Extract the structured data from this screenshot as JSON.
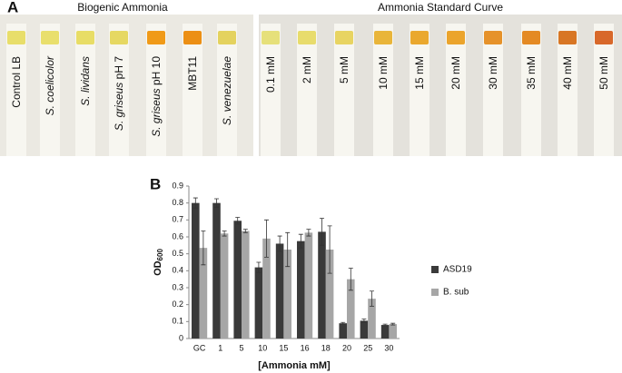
{
  "panel_a": {
    "label": "A",
    "groups": [
      {
        "title": "Biogenic Ammonia",
        "strips": [
          {
            "name": "Control LB",
            "color": "#e8de6a"
          },
          {
            "species": "S. coelicolor",
            "color": "#e9df6c"
          },
          {
            "species": "S. lividans",
            "color": "#e8dd66"
          },
          {
            "species": "S. griseus",
            "condition": "pH 7",
            "color": "#e6d862"
          },
          {
            "species": "S. griseus",
            "condition": "pH 10",
            "color": "#f09a18"
          },
          {
            "name": "MBT11",
            "color": "#ec8f14"
          },
          {
            "species": "S. venezuelae",
            "color": "#e4d25e"
          }
        ]
      },
      {
        "title": "Ammonia Standard Curve",
        "strips": [
          {
            "name": "0.1 mM",
            "color": "#e6e07a"
          },
          {
            "name": "2 mM",
            "color": "#e8dc6c"
          },
          {
            "name": "5 mM",
            "color": "#e8d462"
          },
          {
            "name": "10 mM",
            "color": "#e9b53a"
          },
          {
            "name": "15 mM",
            "color": "#eaa82e"
          },
          {
            "name": "20 mM",
            "color": "#eba42c"
          },
          {
            "name": "30 mM",
            "color": "#e6922a"
          },
          {
            "name": "35 mM",
            "color": "#e48a24"
          },
          {
            "name": "40 mM",
            "color": "#d87624"
          },
          {
            "name": "50 mM",
            "color": "#d8682a"
          }
        ]
      }
    ]
  },
  "chart_data": {
    "type": "bar",
    "panel_label": "B",
    "x_label": "[Ammonia mM]",
    "y_label": "OD",
    "y_label_sub": "600",
    "categories": [
      "GC",
      "1",
      "5",
      "10",
      "15",
      "16",
      "18",
      "20",
      "25",
      "30"
    ],
    "series": [
      {
        "name": "ASD19",
        "color": "#3a3a3a",
        "values": [
          0.8,
          0.8,
          0.695,
          0.42,
          0.56,
          0.575,
          0.63,
          0.09,
          0.105,
          0.08
        ],
        "errors": [
          0.03,
          0.025,
          0.02,
          0.03,
          0.045,
          0.04,
          0.08,
          0.005,
          0.01,
          0.005
        ]
      },
      {
        "name": "B. sub",
        "color": "#a6a6a6",
        "values": [
          0.535,
          0.62,
          0.635,
          0.59,
          0.525,
          0.625,
          0.525,
          0.35,
          0.235,
          0.085
        ],
        "errors": [
          0.1,
          0.015,
          0.01,
          0.11,
          0.1,
          0.02,
          0.14,
          0.065,
          0.045,
          0.005
        ]
      }
    ],
    "ylim": [
      0,
      0.9
    ],
    "yticks": [
      0,
      0.1,
      0.2,
      0.3,
      0.4,
      0.5,
      0.6,
      0.7,
      0.8,
      0.9
    ]
  }
}
